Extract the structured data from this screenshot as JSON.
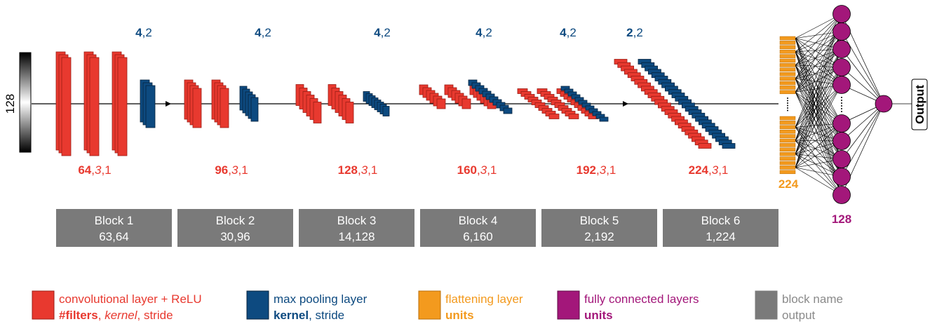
{
  "input": {
    "label": "128"
  },
  "blocks": [
    {
      "name": "Block 1",
      "output": "63,64",
      "conv": [
        "64",
        ",",
        "3",
        ",1"
      ],
      "pool": [
        "4",
        ",2"
      ]
    },
    {
      "name": "Block 2",
      "output": "30,96",
      "conv": [
        "96",
        ",",
        "3",
        ",1"
      ],
      "pool": [
        "4",
        ",2"
      ]
    },
    {
      "name": "Block 3",
      "output": "14,128",
      "conv": [
        "128",
        ",",
        "3",
        ",1"
      ],
      "pool": [
        "4",
        ",2"
      ]
    },
    {
      "name": "Block 4",
      "output": "6,160",
      "conv": [
        "160",
        ",",
        "3",
        ",1"
      ],
      "pool": [
        "4",
        ",2"
      ]
    },
    {
      "name": "Block 5",
      "output": "2,192",
      "conv": [
        "192",
        ",",
        "3",
        ",1"
      ],
      "pool": [
        "4",
        ",2"
      ]
    },
    {
      "name": "Block 6",
      "output": "1,224",
      "conv": [
        "224",
        ",",
        "3",
        ",1"
      ],
      "pool": [
        "2",
        ",2"
      ]
    }
  ],
  "flatten": {
    "units": "224"
  },
  "dense": {
    "units": "128"
  },
  "output": "Output",
  "legend": [
    {
      "title": "convolutional layer + ReLU",
      "detail": [
        "#filters",
        ", ",
        "kernel",
        ", stride"
      ]
    },
    {
      "title": "max pooling layer",
      "detail": [
        "kernel",
        ", stride"
      ]
    },
    {
      "title": "flattening layer",
      "detail": [
        "units"
      ]
    },
    {
      "title": "fully connected layers",
      "detail": [
        "units"
      ]
    },
    {
      "title": "block name",
      "detail": [
        "output"
      ]
    }
  ]
}
